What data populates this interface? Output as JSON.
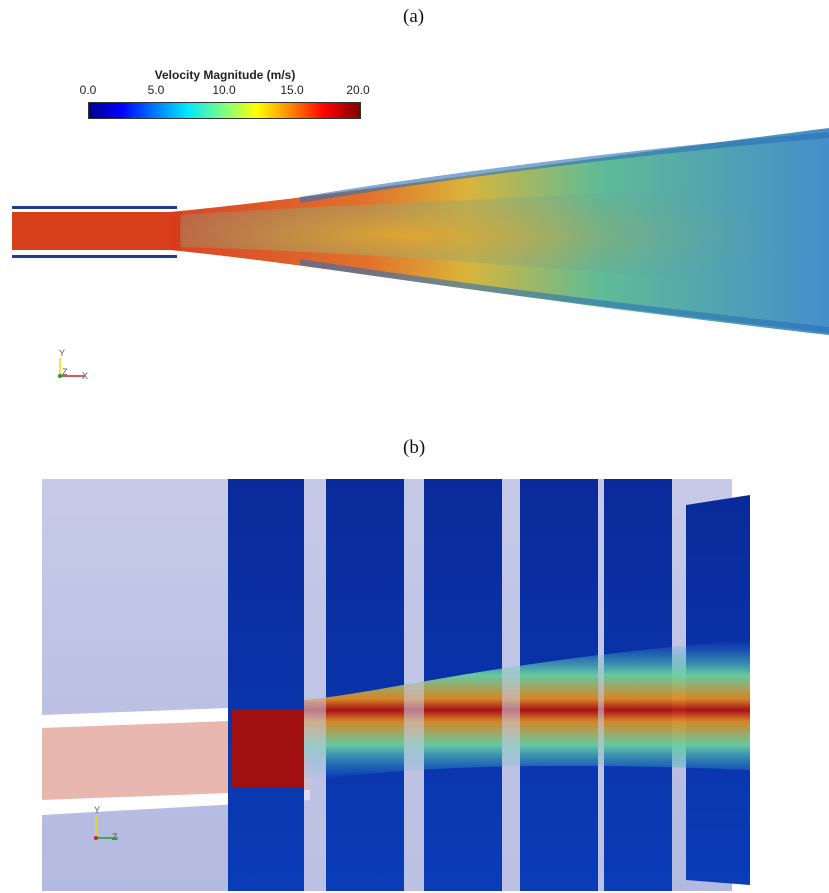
{
  "panels": {
    "a": {
      "label": "(a)"
    },
    "b": {
      "label": "(b)"
    }
  },
  "colorbar": {
    "title": "Velocity Magnitude (m/s)",
    "ticks": [
      "0.0",
      "5.0",
      "10.0",
      "15.0",
      "20.0"
    ],
    "range": [
      0,
      20
    ],
    "colors": [
      "#00008f",
      "#0000ff",
      "#0080ff",
      "#00e5ff",
      "#7fff7f",
      "#ffff00",
      "#ff8000",
      "#ff0000",
      "#800000"
    ]
  },
  "axes_a": {
    "y": "Y",
    "z": "Z",
    "x": "X"
  },
  "axes_b": {
    "y": "Y",
    "z": "Z"
  }
}
